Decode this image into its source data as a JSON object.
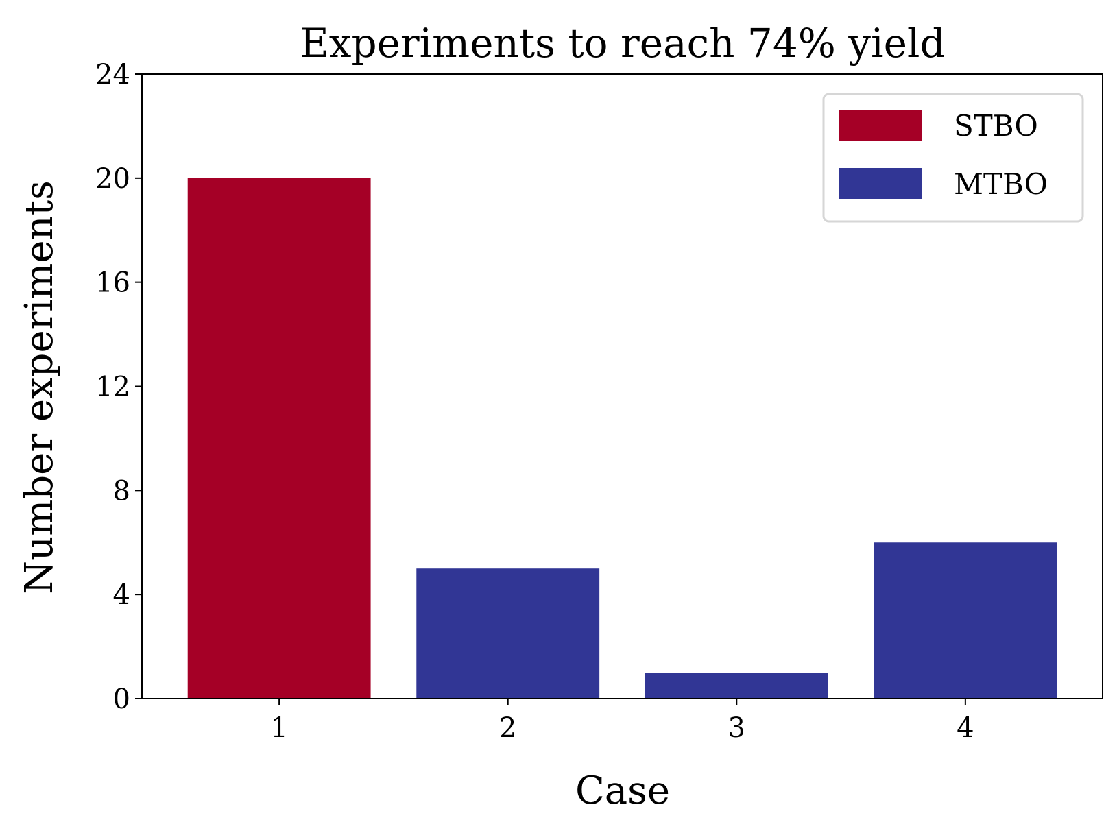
{
  "chart_data": {
    "type": "bar",
    "title": "Experiments to reach 74% yield",
    "xlabel": "Case",
    "ylabel": "Number experiments",
    "categories": [
      "1",
      "2",
      "3",
      "4"
    ],
    "values": [
      20,
      5,
      1,
      6
    ],
    "bar_series": [
      "STBO",
      "MTBO",
      "MTBO",
      "MTBO"
    ],
    "ylim": [
      0,
      24
    ],
    "yticks": [
      "0",
      "4",
      "8",
      "12",
      "16",
      "20",
      "24"
    ],
    "grid": false,
    "legend_position": "top-right",
    "legend": [
      {
        "name": "STBO",
        "color": "#a50026"
      },
      {
        "name": "MTBO",
        "color": "#313695"
      }
    ]
  }
}
